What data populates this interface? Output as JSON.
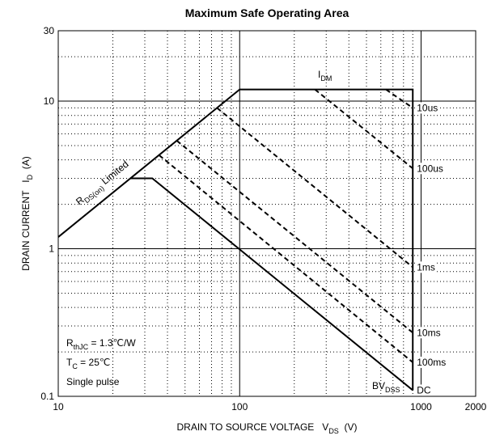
{
  "chart_data": {
    "type": "line",
    "title": "Maximum Safe Operating Area",
    "x_label": [
      {
        "text": "DRAIN TO SOURCE VOLTAGE   V"
      },
      {
        "text": "DS",
        "sub": true
      },
      {
        "text": "  (V)"
      }
    ],
    "y_label": [
      {
        "text": "DRAIN CURRENT   I"
      },
      {
        "text": "D",
        "sub": true
      },
      {
        "text": "  (A)"
      }
    ],
    "log_x": true,
    "log_y": true,
    "grid": true,
    "xlim": [
      10,
      2000
    ],
    "ylim": [
      0.1,
      30
    ],
    "xticks": [
      10,
      100,
      1000,
      2000
    ],
    "yticks": [
      0.1,
      1,
      10,
      30
    ],
    "x_minor_ticks": [
      20,
      30,
      40,
      50,
      60,
      70,
      80,
      90,
      200,
      300,
      400,
      500,
      600,
      700,
      800,
      900
    ],
    "y_minor_ticks": [
      0.2,
      0.3,
      0.4,
      0.5,
      0.6,
      0.7,
      0.8,
      0.9,
      2,
      3,
      4,
      5,
      6,
      7,
      8,
      9,
      20
    ],
    "series": [
      {
        "color": "#000000",
        "dashed": false,
        "x": [
          10,
          100,
          900,
          900
        ],
        "values": [
          1.2,
          12,
          12,
          0.11
        ]
      },
      {
        "name": "10us",
        "color": "#000000",
        "dashed": true,
        "x": [
          640,
          900
        ],
        "values": [
          12,
          9
        ]
      },
      {
        "name": "100us",
        "color": "#000000",
        "dashed": true,
        "x": [
          260,
          900
        ],
        "values": [
          12,
          3.5
        ]
      },
      {
        "name": "1ms",
        "color": "#000000",
        "dashed": true,
        "x": [
          75,
          900
        ],
        "values": [
          9,
          0.75
        ]
      },
      {
        "name": "10ms",
        "color": "#000000",
        "dashed": true,
        "x": [
          45,
          900
        ],
        "values": [
          5.4,
          0.27
        ]
      },
      {
        "name": "100ms",
        "color": "#000000",
        "dashed": true,
        "x": [
          36,
          900
        ],
        "values": [
          4.3,
          0.17
        ]
      },
      {
        "name": "DC",
        "color": "#000000",
        "dashed": false,
        "x": [
          25,
          33,
          900
        ],
        "values": [
          3,
          3,
          0.11
        ]
      }
    ],
    "annotations": [
      [
        {
          "text": "R"
        },
        {
          "text": "DS(on)",
          "sub": true
        },
        {
          "text": " Limited"
        }
      ],
      [
        {
          "text": "I"
        },
        {
          "text": "DM",
          "sub": true
        }
      ],
      [
        {
          "text": "BV"
        },
        {
          "text": "DSS",
          "sub": true
        }
      ],
      [
        {
          "text": "R"
        },
        {
          "text": "thJC",
          "sub": true
        },
        {
          "text": " = 1.3℃/W"
        }
      ],
      [
        {
          "text": "T"
        },
        {
          "text": "C",
          "sub": true
        },
        {
          "text": " = 25℃"
        }
      ],
      [
        {
          "text": "Single pulse"
        }
      ]
    ]
  }
}
